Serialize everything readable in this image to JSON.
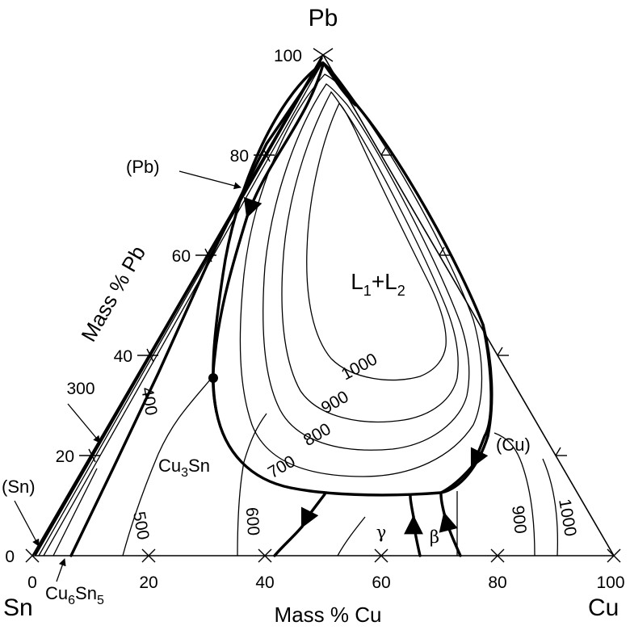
{
  "corners": {
    "top": "Pb",
    "left": "Sn",
    "right": "Cu"
  },
  "axes": {
    "bottom_label": "Mass % Cu",
    "left_label": "Mass % Pb",
    "bottom_ticks": [
      "0",
      "20",
      "40",
      "60",
      "80",
      "100"
    ],
    "left_ticks": [
      "0",
      "20",
      "40",
      "60",
      "80",
      "100"
    ]
  },
  "phase_labels": {
    "pb": "(Pb)",
    "sn": "(Sn)",
    "cu": "(Cu)",
    "cu6sn5_base": "Cu",
    "cu6sn5_sub1": "6",
    "cu6sn5_mid": "Sn",
    "cu6sn5_sub2": "5",
    "cu3sn_base": "Cu",
    "cu3sn_sub": "3",
    "cu3sn_end": "Sn",
    "gamma": "γ",
    "beta": "β"
  },
  "miscibility_gap": {
    "l1": "L",
    "l1_sub": "1",
    "plus": "+",
    "l2": "L",
    "l2_sub": "2"
  },
  "isotherms": [
    "300",
    "400",
    "500",
    "600",
    "700",
    "800",
    "900",
    "1000",
    "900",
    "1000"
  ]
}
